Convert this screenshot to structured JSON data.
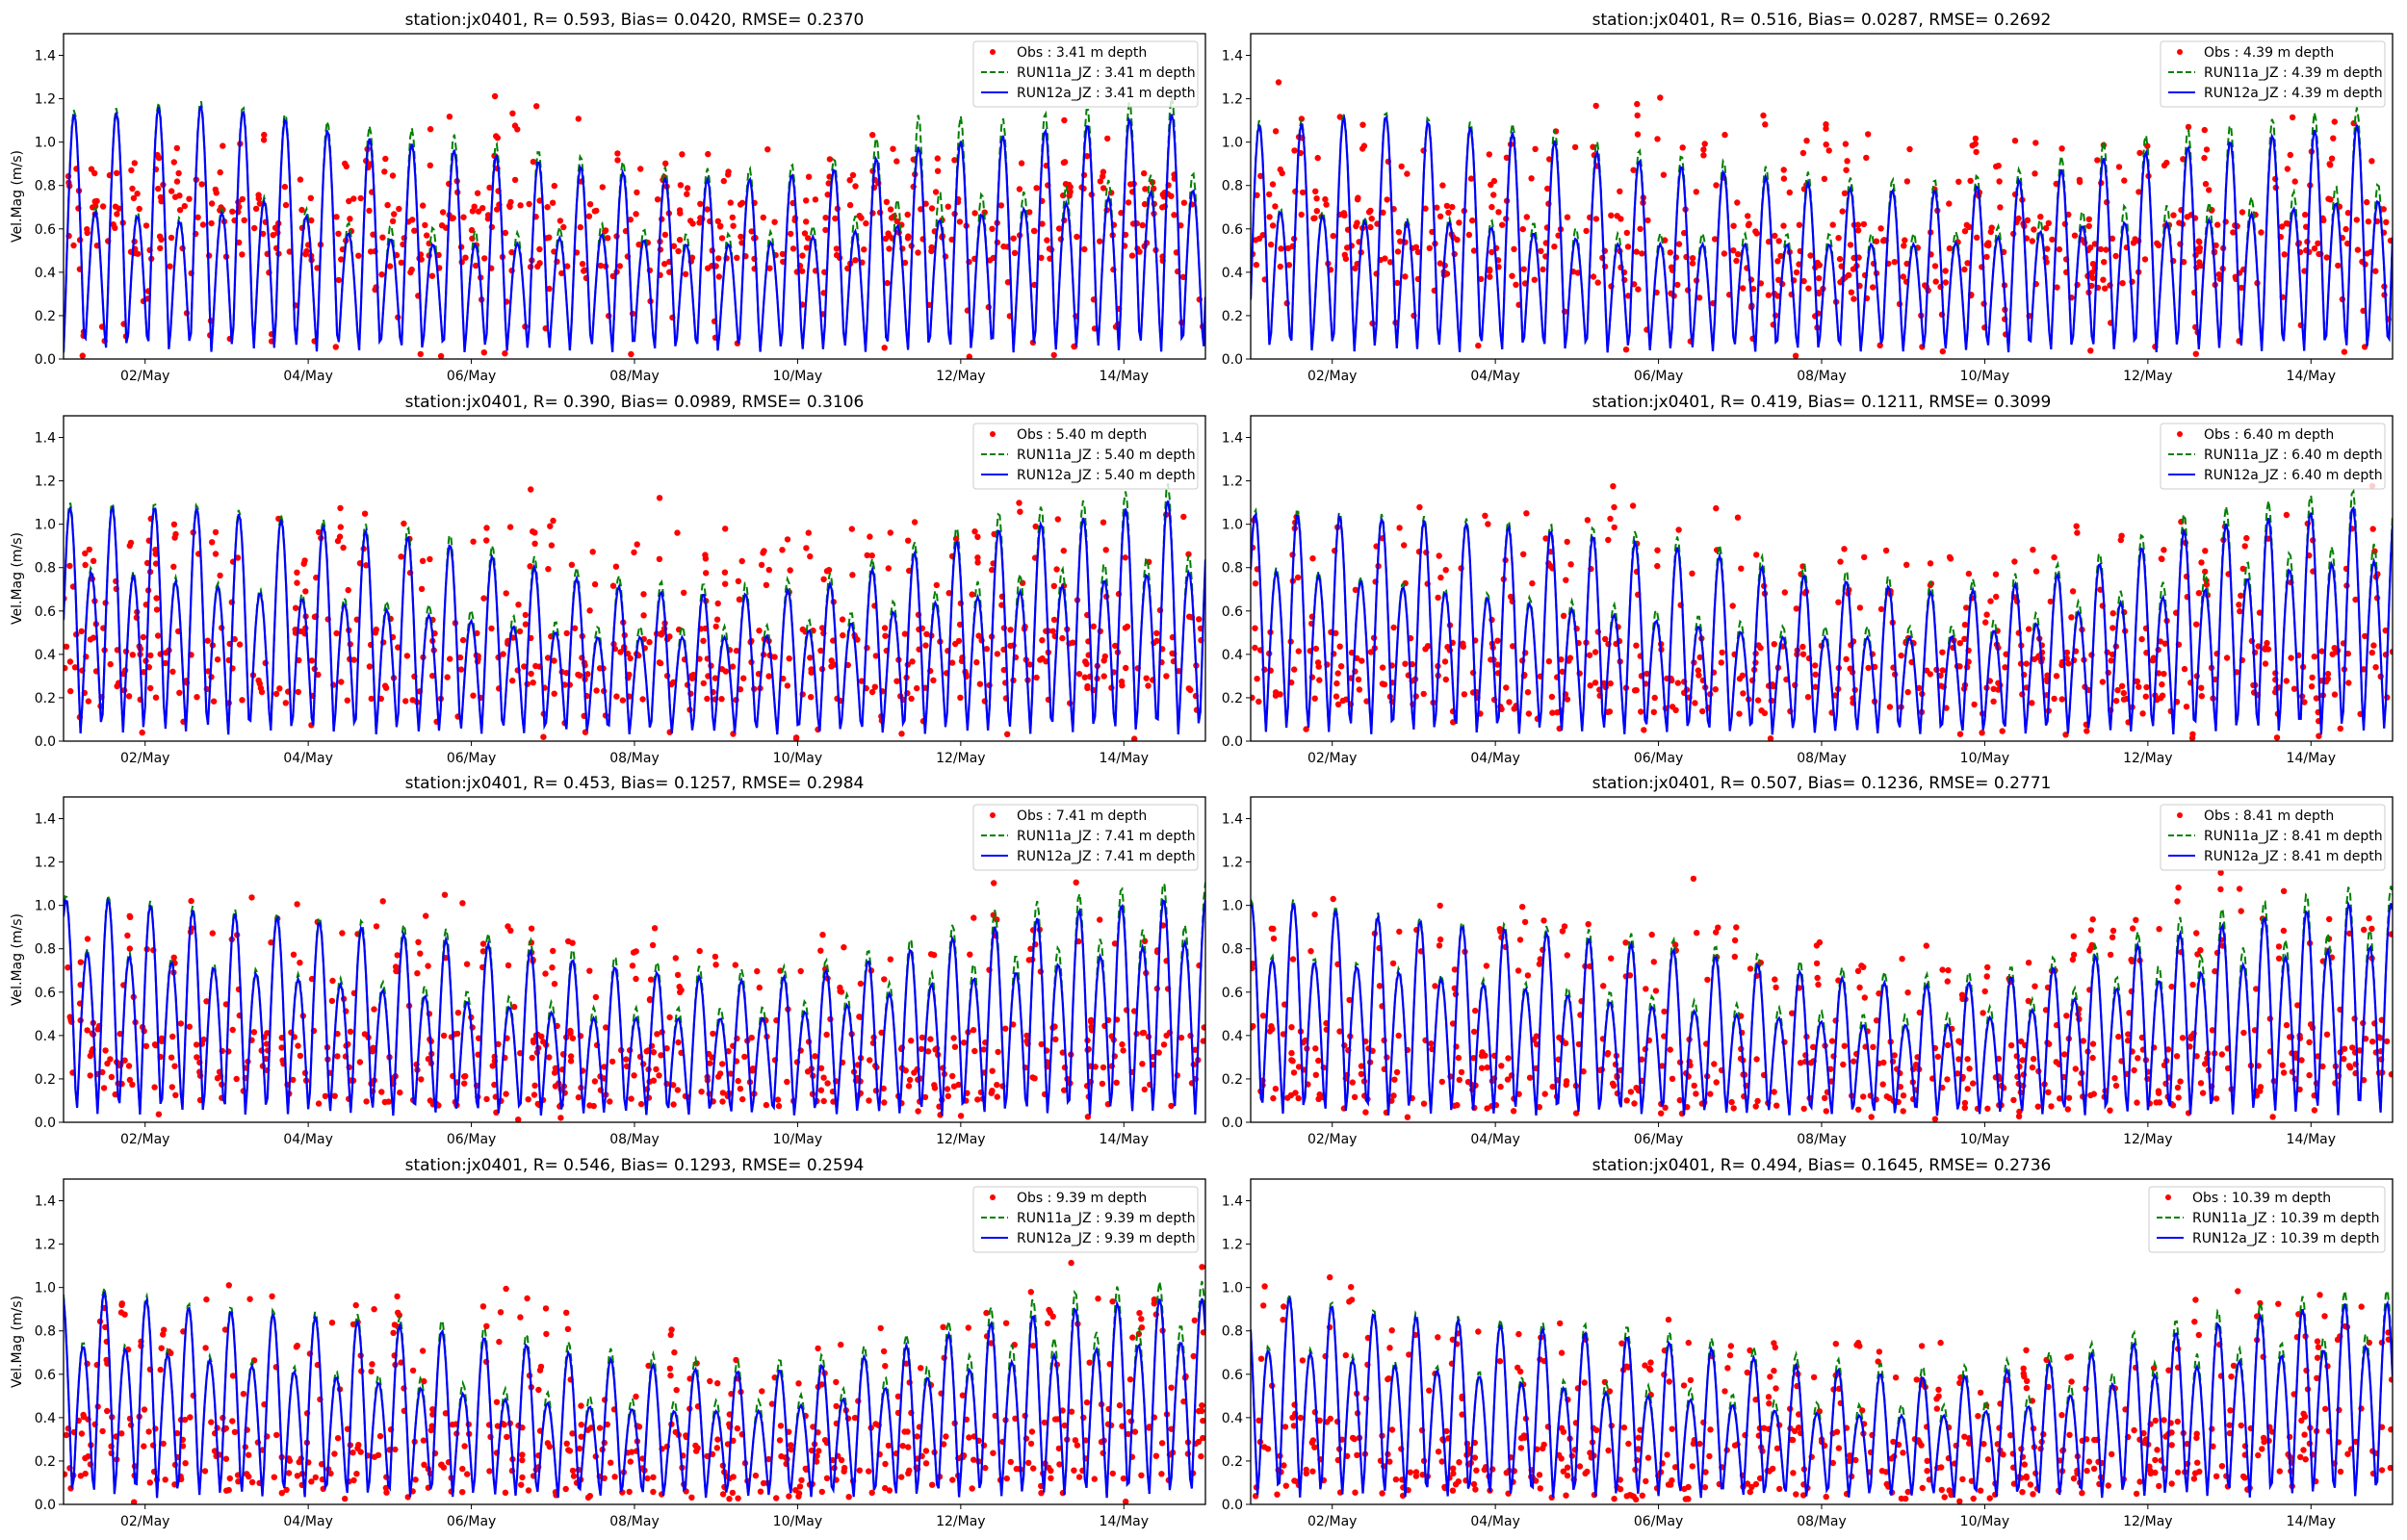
{
  "chart_data": {
    "type": "scatter",
    "layout": "4x2 grid of subplots",
    "shared": {
      "ylabel": "Vel.Mag (m/s)",
      "ylim": [
        0,
        1.5
      ],
      "yticks": [
        "0.0",
        "0.2",
        "0.4",
        "0.6",
        "0.8",
        "1.0",
        "1.2",
        "1.4"
      ],
      "ytick_values": [
        0,
        0.2,
        0.4,
        0.6,
        0.8,
        1.0,
        1.2,
        1.4
      ],
      "xlim_days": [
        1,
        15
      ],
      "xlim_label": [
        "01/May 00:00",
        "15/May 00:00"
      ],
      "xticks": [
        "02/May",
        "04/May",
        "06/May",
        "08/May",
        "10/May",
        "12/May",
        "14/May"
      ],
      "xtick_days": [
        2,
        4,
        6,
        8,
        10,
        12,
        14
      ],
      "legend_placement": "top-right",
      "grid": false,
      "series_style": [
        {
          "name": "Obs",
          "kind": "points",
          "color": "#ff0000"
        },
        {
          "name": "RUN11a_JZ",
          "kind": "dashed-line",
          "color": "#008000"
        },
        {
          "name": "RUN12a_JZ",
          "kind": "solid-line",
          "color": "#0000ff"
        }
      ]
    },
    "panels": [
      {
        "title": "station:jx0401, R= 0.593, Bias= 0.0420, RMSE= 0.2370",
        "depth": "3.41",
        "legend": [
          "Obs : 3.41 m depth",
          "RUN11a_JZ : 3.41 m depth",
          "RUN12a_JZ : 3.41 m depth"
        ],
        "stats": {
          "R": 0.593,
          "Bias": 0.042,
          "RMSE": 0.237
        },
        "model_major_peaks_by_day": [
          1.1,
          1.15,
          1.1,
          1.0,
          0.95,
          0.9,
          0.85,
          0.8,
          0.8,
          0.85,
          0.95,
          1.0,
          1.05,
          1.1
        ],
        "model_minor_peaks_by_day": [
          0.65,
          0.6,
          0.7,
          0.55,
          0.5,
          0.5,
          0.55,
          0.5,
          0.5,
          0.55,
          0.6,
          0.65,
          0.7,
          0.75
        ],
        "run11_extra_by_day": [
          0.02,
          0.02,
          0.02,
          0.05,
          0.08,
          0.05,
          0.05,
          0.05,
          0.05,
          0.05,
          0.15,
          0.08,
          0.08,
          0.08
        ],
        "obs_center_by_day": [
          0.65,
          0.62,
          0.6,
          0.58,
          0.55,
          0.55,
          0.55,
          0.55,
          0.55,
          0.58,
          0.6,
          0.62,
          0.65,
          0.65
        ],
        "obs_peak_by_day": [
          1.05,
          1.0,
          1.0,
          1.05,
          1.1,
          1.15,
          1.0,
          1.0,
          1.0,
          1.0,
          1.05,
          1.05,
          1.1,
          1.1
        ]
      },
      {
        "title": "station:jx0401, R= 0.516, Bias= 0.0287, RMSE= 0.2692",
        "depth": "4.39",
        "legend": [
          "Obs : 4.39 m depth",
          "RUN11a_JZ : 4.39 m depth",
          "RUN12a_JZ : 4.39 m depth"
        ],
        "stats": {
          "R": 0.516,
          "Bias": 0.0287,
          "RMSE": 0.2692
        },
        "model_major_peaks_by_day": [
          1.05,
          1.1,
          1.05,
          1.0,
          0.9,
          0.85,
          0.8,
          0.75,
          0.75,
          0.8,
          0.9,
          0.95,
          1.0,
          1.05
        ],
        "model_minor_peaks_by_day": [
          0.65,
          0.6,
          0.6,
          0.55,
          0.5,
          0.5,
          0.5,
          0.5,
          0.5,
          0.55,
          0.6,
          0.6,
          0.65,
          0.7
        ],
        "run11_extra_by_day": [
          0.02,
          0.02,
          0.02,
          0.05,
          0.05,
          0.05,
          0.05,
          0.05,
          0.05,
          0.05,
          0.08,
          0.08,
          0.08,
          0.08
        ],
        "obs_center_by_day": [
          0.6,
          0.55,
          0.55,
          0.5,
          0.5,
          0.45,
          0.45,
          0.45,
          0.45,
          0.5,
          0.5,
          0.5,
          0.55,
          0.55
        ],
        "obs_peak_by_day": [
          1.2,
          1.1,
          1.05,
          1.1,
          1.2,
          1.25,
          1.05,
          1.1,
          1.05,
          1.05,
          1.05,
          1.05,
          1.1,
          1.1
        ]
      },
      {
        "title": "station:jx0401, R= 0.390, Bias= 0.0989, RMSE= 0.3106",
        "depth": "5.40",
        "legend": [
          "Obs : 5.40 m depth",
          "RUN11a_JZ : 5.40 m depth",
          "RUN12a_JZ : 5.40 m depth"
        ],
        "stats": {
          "R": 0.39,
          "Bias": 0.0989,
          "RMSE": 0.3106
        },
        "model_major_peaks_by_day": [
          1.05,
          1.05,
          1.0,
          0.95,
          0.9,
          0.8,
          0.7,
          0.65,
          0.65,
          0.7,
          0.85,
          0.95,
          1.0,
          1.08
        ],
        "model_minor_peaks_by_day": [
          0.75,
          0.7,
          0.65,
          0.6,
          0.55,
          0.5,
          0.45,
          0.45,
          0.45,
          0.5,
          0.6,
          0.65,
          0.7,
          0.75
        ],
        "run11_extra_by_day": [
          0.02,
          0.02,
          0.02,
          0.03,
          0.05,
          0.05,
          0.05,
          0.05,
          0.05,
          0.05,
          0.05,
          0.08,
          0.08,
          0.08
        ],
        "obs_center_by_day": [
          0.35,
          0.35,
          0.35,
          0.35,
          0.35,
          0.35,
          0.35,
          0.35,
          0.35,
          0.35,
          0.35,
          0.35,
          0.4,
          0.4
        ],
        "obs_peak_by_day": [
          1.05,
          1.05,
          1.05,
          1.1,
          1.1,
          1.25,
          1.0,
          1.05,
          1.0,
          1.0,
          1.05,
          1.05,
          1.1,
          1.1
        ]
      },
      {
        "title": "station:jx0401, R= 0.419, Bias= 0.1211, RMSE= 0.3099",
        "depth": "6.40",
        "legend": [
          "Obs : 6.40 m depth",
          "RUN11a_JZ : 6.40 m depth",
          "RUN12a_JZ : 6.40 m depth"
        ],
        "stats": {
          "R": 0.419,
          "Bias": 0.1211,
          "RMSE": 0.3099
        },
        "model_major_peaks_by_day": [
          1.02,
          1.0,
          0.98,
          0.95,
          0.9,
          0.85,
          0.75,
          0.7,
          0.65,
          0.7,
          0.8,
          0.95,
          1.0,
          1.05
        ],
        "model_minor_peaks_by_day": [
          0.75,
          0.7,
          0.65,
          0.6,
          0.55,
          0.5,
          0.45,
          0.45,
          0.45,
          0.5,
          0.6,
          0.65,
          0.75,
          0.8
        ],
        "run11_extra_by_day": [
          0.02,
          0.02,
          0.02,
          0.03,
          0.05,
          0.05,
          0.05,
          0.05,
          0.05,
          0.05,
          0.05,
          0.08,
          0.08,
          0.08
        ],
        "obs_center_by_day": [
          0.35,
          0.32,
          0.3,
          0.3,
          0.3,
          0.3,
          0.3,
          0.3,
          0.3,
          0.3,
          0.3,
          0.3,
          0.35,
          0.35
        ],
        "obs_peak_by_day": [
          1.0,
          1.0,
          1.1,
          1.05,
          1.1,
          1.15,
          0.95,
          0.9,
          0.85,
          0.85,
          0.95,
          1.05,
          1.05,
          1.1
        ]
      },
      {
        "title": "station:jx0401, R= 0.453, Bias= 0.1257, RMSE= 0.2984",
        "depth": "7.41",
        "legend": [
          "Obs : 7.41 m depth",
          "RUN11a_JZ : 7.41 m depth",
          "RUN12a_JZ : 7.41 m depth"
        ],
        "stats": {
          "R": 0.453,
          "Bias": 0.1257,
          "RMSE": 0.2984
        },
        "model_major_peaks_by_day": [
          1.0,
          0.95,
          0.92,
          0.88,
          0.82,
          0.78,
          0.7,
          0.65,
          0.62,
          0.68,
          0.78,
          0.88,
          0.95,
          1.0
        ],
        "model_minor_peaks_by_day": [
          0.75,
          0.7,
          0.65,
          0.6,
          0.55,
          0.5,
          0.45,
          0.45,
          0.45,
          0.5,
          0.6,
          0.65,
          0.72,
          0.8
        ],
        "run11_extra_by_day": [
          0.02,
          0.02,
          0.02,
          0.03,
          0.05,
          0.05,
          0.05,
          0.05,
          0.05,
          0.05,
          0.05,
          0.08,
          0.08,
          0.08
        ],
        "obs_center_by_day": [
          0.3,
          0.28,
          0.25,
          0.25,
          0.25,
          0.25,
          0.25,
          0.25,
          0.25,
          0.25,
          0.25,
          0.28,
          0.3,
          0.3
        ],
        "obs_peak_by_day": [
          1.0,
          1.05,
          1.05,
          1.1,
          1.05,
          1.0,
          0.95,
          0.9,
          0.85,
          0.85,
          0.95,
          1.1,
          1.05,
          1.1
        ]
      },
      {
        "title": "station:jx0401, R= 0.507, Bias= 0.1236, RMSE= 0.2771",
        "depth": "8.41",
        "legend": [
          "Obs : 8.41 m depth",
          "RUN11a_JZ : 8.41 m depth",
          "RUN12a_JZ : 8.41 m depth"
        ],
        "stats": {
          "R": 0.507,
          "Bias": 0.1236,
          "RMSE": 0.2771
        },
        "model_major_peaks_by_day": [
          0.98,
          0.92,
          0.88,
          0.85,
          0.8,
          0.75,
          0.68,
          0.62,
          0.6,
          0.65,
          0.75,
          0.85,
          0.92,
          0.98
        ],
        "model_minor_peaks_by_day": [
          0.72,
          0.68,
          0.62,
          0.58,
          0.52,
          0.48,
          0.45,
          0.42,
          0.42,
          0.48,
          0.58,
          0.65,
          0.72,
          0.78
        ],
        "run11_extra_by_day": [
          0.02,
          0.02,
          0.02,
          0.03,
          0.05,
          0.05,
          0.05,
          0.05,
          0.05,
          0.05,
          0.05,
          0.08,
          0.08,
          0.08
        ],
        "obs_center_by_day": [
          0.28,
          0.25,
          0.22,
          0.22,
          0.22,
          0.22,
          0.22,
          0.22,
          0.22,
          0.22,
          0.22,
          0.25,
          0.28,
          0.3
        ],
        "obs_peak_by_day": [
          1.0,
          0.95,
          1.0,
          1.05,
          0.95,
          1.1,
          0.85,
          0.8,
          0.8,
          0.8,
          0.95,
          1.1,
          1.1,
          1.15
        ]
      },
      {
        "title": "station:jx0401, R= 0.546, Bias= 0.1293, RMSE= 0.2594",
        "depth": "9.39",
        "legend": [
          "Obs : 9.39 m depth",
          "RUN11a_JZ : 9.39 m depth",
          "RUN12a_JZ : 9.39 m depth"
        ],
        "stats": {
          "R": 0.546,
          "Bias": 0.1293,
          "RMSE": 0.2594
        },
        "model_major_peaks_by_day": [
          0.95,
          0.88,
          0.85,
          0.82,
          0.78,
          0.72,
          0.65,
          0.6,
          0.58,
          0.62,
          0.72,
          0.82,
          0.88,
          0.92
        ],
        "model_minor_peaks_by_day": [
          0.7,
          0.65,
          0.6,
          0.55,
          0.5,
          0.45,
          0.42,
          0.4,
          0.4,
          0.45,
          0.55,
          0.62,
          0.68,
          0.72
        ],
        "run11_extra_by_day": [
          0.02,
          0.02,
          0.02,
          0.03,
          0.05,
          0.05,
          0.05,
          0.05,
          0.05,
          0.05,
          0.05,
          0.08,
          0.08,
          0.08
        ],
        "obs_center_by_day": [
          0.28,
          0.25,
          0.22,
          0.2,
          0.2,
          0.2,
          0.2,
          0.2,
          0.2,
          0.2,
          0.22,
          0.25,
          0.28,
          0.3
        ],
        "obs_peak_by_day": [
          1.05,
          0.95,
          0.95,
          0.95,
          0.9,
          1.05,
          0.8,
          0.75,
          0.75,
          0.75,
          0.9,
          1.0,
          1.15,
          1.15
        ]
      },
      {
        "title": "station:jx0401, R= 0.494, Bias= 0.1645, RMSE= 0.2736",
        "depth": "10.39",
        "legend": [
          "Obs : 10.39 m depth",
          "RUN11a_JZ : 10.39 m depth",
          "RUN12a_JZ : 10.39 m depth"
        ],
        "stats": {
          "R": 0.494,
          "Bias": 0.1645,
          "RMSE": 0.2736
        },
        "model_major_peaks_by_day": [
          0.92,
          0.85,
          0.82,
          0.78,
          0.75,
          0.7,
          0.62,
          0.58,
          0.55,
          0.6,
          0.68,
          0.78,
          0.85,
          0.9
        ],
        "model_minor_peaks_by_day": [
          0.68,
          0.62,
          0.58,
          0.52,
          0.48,
          0.45,
          0.4,
          0.38,
          0.38,
          0.42,
          0.52,
          0.6,
          0.65,
          0.7
        ],
        "run11_extra_by_day": [
          0.02,
          0.02,
          0.02,
          0.03,
          0.05,
          0.05,
          0.05,
          0.05,
          0.05,
          0.05,
          0.05,
          0.06,
          0.06,
          0.06
        ],
        "obs_center_by_day": [
          0.25,
          0.22,
          0.2,
          0.18,
          0.18,
          0.18,
          0.18,
          0.18,
          0.18,
          0.18,
          0.2,
          0.22,
          0.25,
          0.28
        ],
        "obs_peak_by_day": [
          1.05,
          0.9,
          0.85,
          0.8,
          0.78,
          0.85,
          0.72,
          0.7,
          0.7,
          0.7,
          0.8,
          0.9,
          1.0,
          1.05
        ]
      }
    ]
  }
}
